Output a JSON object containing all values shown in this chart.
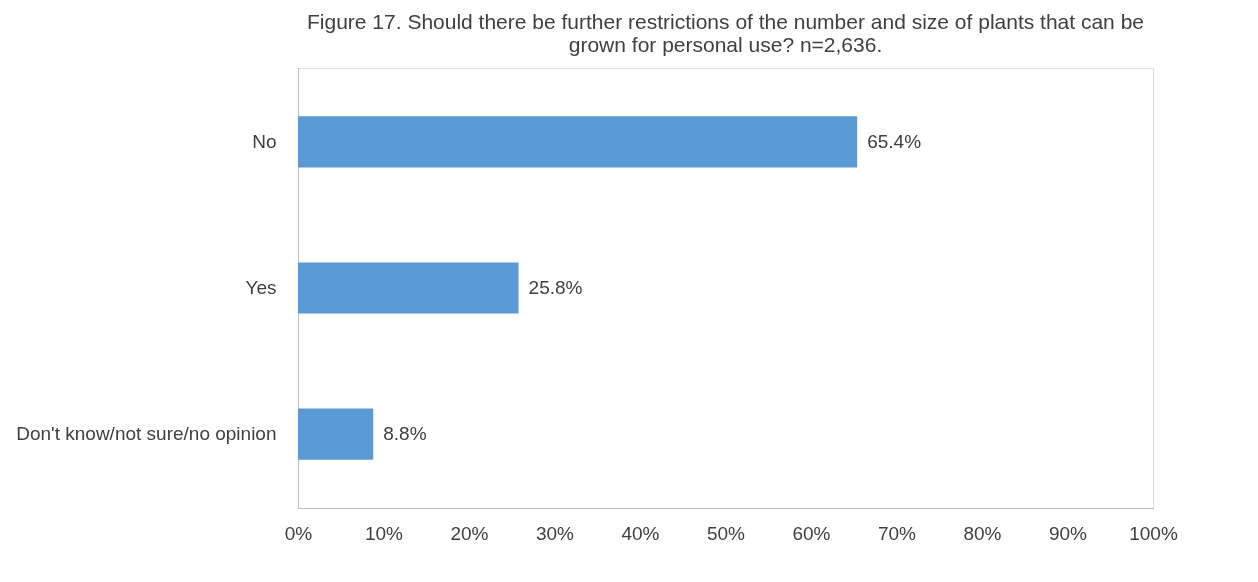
{
  "chart_data": {
    "type": "bar",
    "orientation": "horizontal",
    "title": "Figure 17. Should there be further restrictions of the number and size of plants that can be grown for personal use? n=2,636.",
    "categories": [
      "No",
      "Yes",
      "Don't know/not sure/no opinion"
    ],
    "values": [
      65.4,
      25.8,
      8.8
    ],
    "value_labels": [
      "65.4%",
      "25.8%",
      "8.8%"
    ],
    "color": "#5b9bd5",
    "xlim": [
      0,
      100
    ],
    "xticks": [
      {
        "value": 0,
        "label": "0%"
      },
      {
        "value": 10,
        "label": "10%"
      },
      {
        "value": 20,
        "label": "20%"
      },
      {
        "value": 30,
        "label": "30%"
      },
      {
        "value": 40,
        "label": "40%"
      },
      {
        "value": 50,
        "label": "50%"
      },
      {
        "value": 60,
        "label": "60%"
      },
      {
        "value": 70,
        "label": "70%"
      },
      {
        "value": 80,
        "label": "80%"
      },
      {
        "value": 90,
        "label": "90%"
      },
      {
        "value": 100,
        "label": "100%"
      }
    ],
    "grid": false
  }
}
